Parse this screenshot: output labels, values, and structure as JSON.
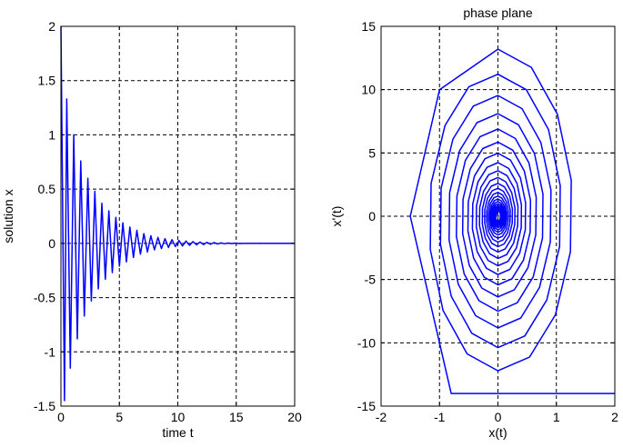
{
  "chart_data": [
    {
      "type": "line",
      "title": "",
      "xlabel": "time t",
      "ylabel": "solution x",
      "xlim": [
        0,
        20
      ],
      "ylim": [
        -1.5,
        2
      ],
      "xticks": [
        0,
        5,
        10,
        15,
        20
      ],
      "yticks": [
        -1.5,
        -1,
        -0.5,
        0,
        0.5,
        1,
        1.5,
        2
      ],
      "grid": true,
      "grid_style": "dashed",
      "series": [
        {
          "color": "#0000ff",
          "x": [
            0,
            0.3,
            0.5,
            0.8,
            1.1,
            1.4,
            1.7,
            2.0,
            2.3,
            2.6,
            2.9,
            3.2,
            3.5,
            3.8,
            4.1,
            4.4,
            4.7,
            5.0,
            5.3,
            5.6,
            5.9,
            6.2,
            6.5,
            6.8,
            7.1,
            7.4,
            7.7,
            8.0,
            8.3,
            8.6,
            8.9,
            9.2,
            9.5,
            9.8,
            10.1,
            10.4,
            10.7,
            11.0,
            11.3,
            11.6,
            11.9,
            12.2,
            12.5,
            12.8,
            13.1,
            13.4,
            13.7,
            14.0,
            14.3,
            14.6,
            14.9,
            15.2,
            16,
            17,
            18,
            19,
            20
          ],
          "y": [
            2,
            -1.45,
            1.33,
            -1.15,
            1.0,
            -0.88,
            0.76,
            -0.67,
            0.6,
            -0.53,
            0.48,
            -0.42,
            0.37,
            -0.33,
            0.3,
            -0.27,
            0.24,
            -0.21,
            0.19,
            -0.17,
            0.15,
            -0.13,
            0.12,
            -0.1,
            0.09,
            -0.08,
            0.07,
            -0.06,
            0.055,
            -0.048,
            0.043,
            -0.038,
            0.034,
            -0.03,
            0.027,
            -0.024,
            0.021,
            -0.018,
            0.016,
            -0.014,
            0.012,
            -0.011,
            0.009,
            -0.008,
            0.007,
            -0.006,
            0.005,
            -0.004,
            0.003,
            -0.002,
            0.002,
            -0.001,
            0,
            0,
            0,
            0,
            0
          ]
        }
      ]
    },
    {
      "type": "line",
      "title": "phase plane",
      "xlabel": "x(t)",
      "ylabel": "x'(t)",
      "xlim": [
        -2,
        2
      ],
      "ylim": [
        -15,
        15
      ],
      "xticks": [
        -2,
        -1,
        0,
        1,
        2
      ],
      "yticks": [
        -15,
        -10,
        -5,
        0,
        5,
        10,
        15
      ],
      "grid": true,
      "grid_style": "dashed",
      "series": [
        {
          "color": "#0000ff",
          "decay": 0.85,
          "x_amplitude": 1.33,
          "y_amplitude": 13.2,
          "x": [
            2,
            -0.8,
            -1.5,
            -1.0
          ],
          "y": [
            -14,
            -14,
            0,
            10
          ]
        }
      ]
    }
  ]
}
